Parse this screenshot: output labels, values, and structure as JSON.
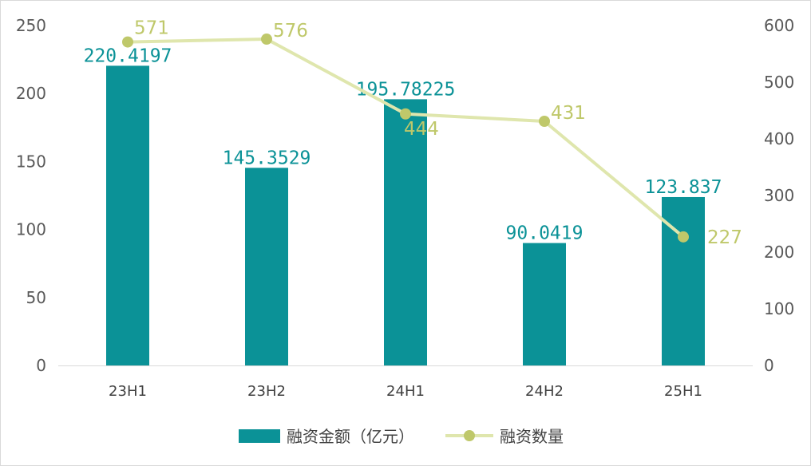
{
  "chart_data": {
    "type": "bar",
    "categories": [
      "23H1",
      "23H2",
      "24H1",
      "24H2",
      "25H1"
    ],
    "series": [
      {
        "name": "融资金额（亿元）",
        "type": "bar",
        "axis": "left",
        "values": [
          220.4197,
          145.3529,
          195.78225,
          90.0419,
          123.837
        ],
        "labels": [
          "220.4197",
          "145.3529",
          "195.78225",
          "90.0419",
          "123.837"
        ]
      },
      {
        "name": "融资数量",
        "type": "line",
        "axis": "right",
        "values": [
          571,
          576,
          444,
          431,
          227
        ],
        "labels": [
          "571",
          "576",
          "444",
          "431",
          "227"
        ]
      }
    ],
    "y_left": {
      "ylim": [
        0,
        250
      ],
      "ticks": [
        "0",
        "50",
        "100",
        "150",
        "200",
        "250"
      ]
    },
    "y_right": {
      "ylim": [
        0,
        600
      ],
      "ticks": [
        "0",
        "100",
        "200",
        "300",
        "400",
        "500",
        "600"
      ]
    },
    "grid": false,
    "legend": "bottom",
    "colors": {
      "bar": "#0b9297",
      "line": "#dfe6ad",
      "marker": "#bfc86a",
      "line_label": "#bfc86a"
    }
  }
}
